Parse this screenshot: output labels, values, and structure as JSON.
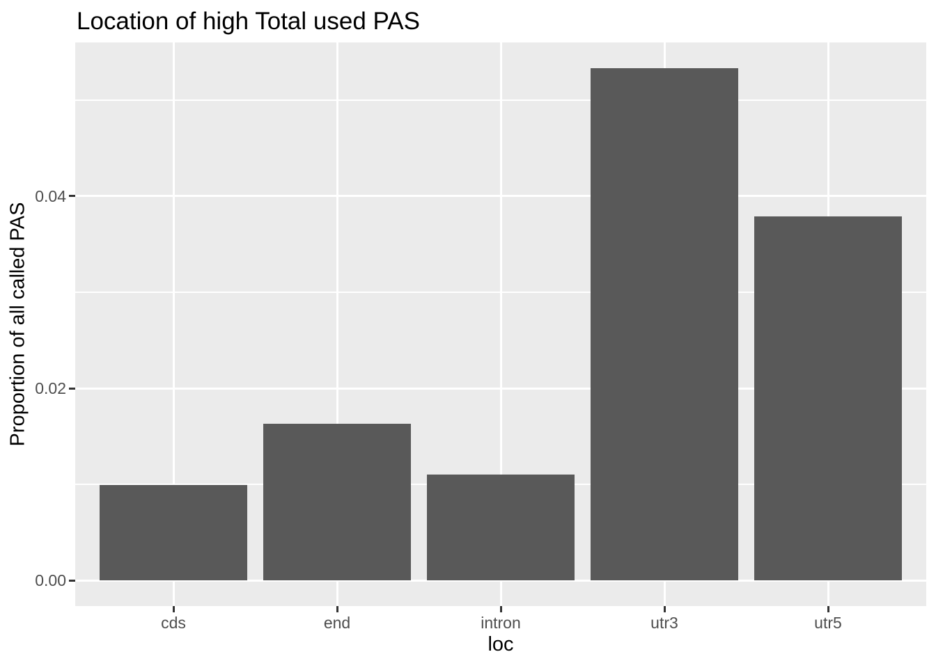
{
  "chart_data": {
    "type": "bar",
    "title": "Location of high Total used PAS",
    "xlabel": "loc",
    "ylabel": "Proportion of all called PAS",
    "categories": [
      "cds",
      "end",
      "intron",
      "utr3",
      "utr5"
    ],
    "values": [
      0.0099,
      0.0163,
      0.011,
      0.0533,
      0.0379
    ],
    "y_major_ticks": [
      0.0,
      0.02,
      0.04
    ],
    "y_major_tick_labels": [
      "0.00",
      "0.02",
      "0.04"
    ],
    "y_minor_ticks": [
      0.01,
      0.03,
      0.05
    ],
    "ylim": [
      -0.00267,
      0.056
    ],
    "grid": "major-and-minor-white-on-grey",
    "legend": "none",
    "bar_width_fraction": 0.9,
    "colors": {
      "bar_fill": "#595959",
      "panel_background": "#EBEBEB",
      "gridline": "#FFFFFF",
      "axis_text": "#4D4D4D",
      "tick_mark": "#333333",
      "title_text": "#000000",
      "page_background": "#FFFFFF"
    }
  }
}
